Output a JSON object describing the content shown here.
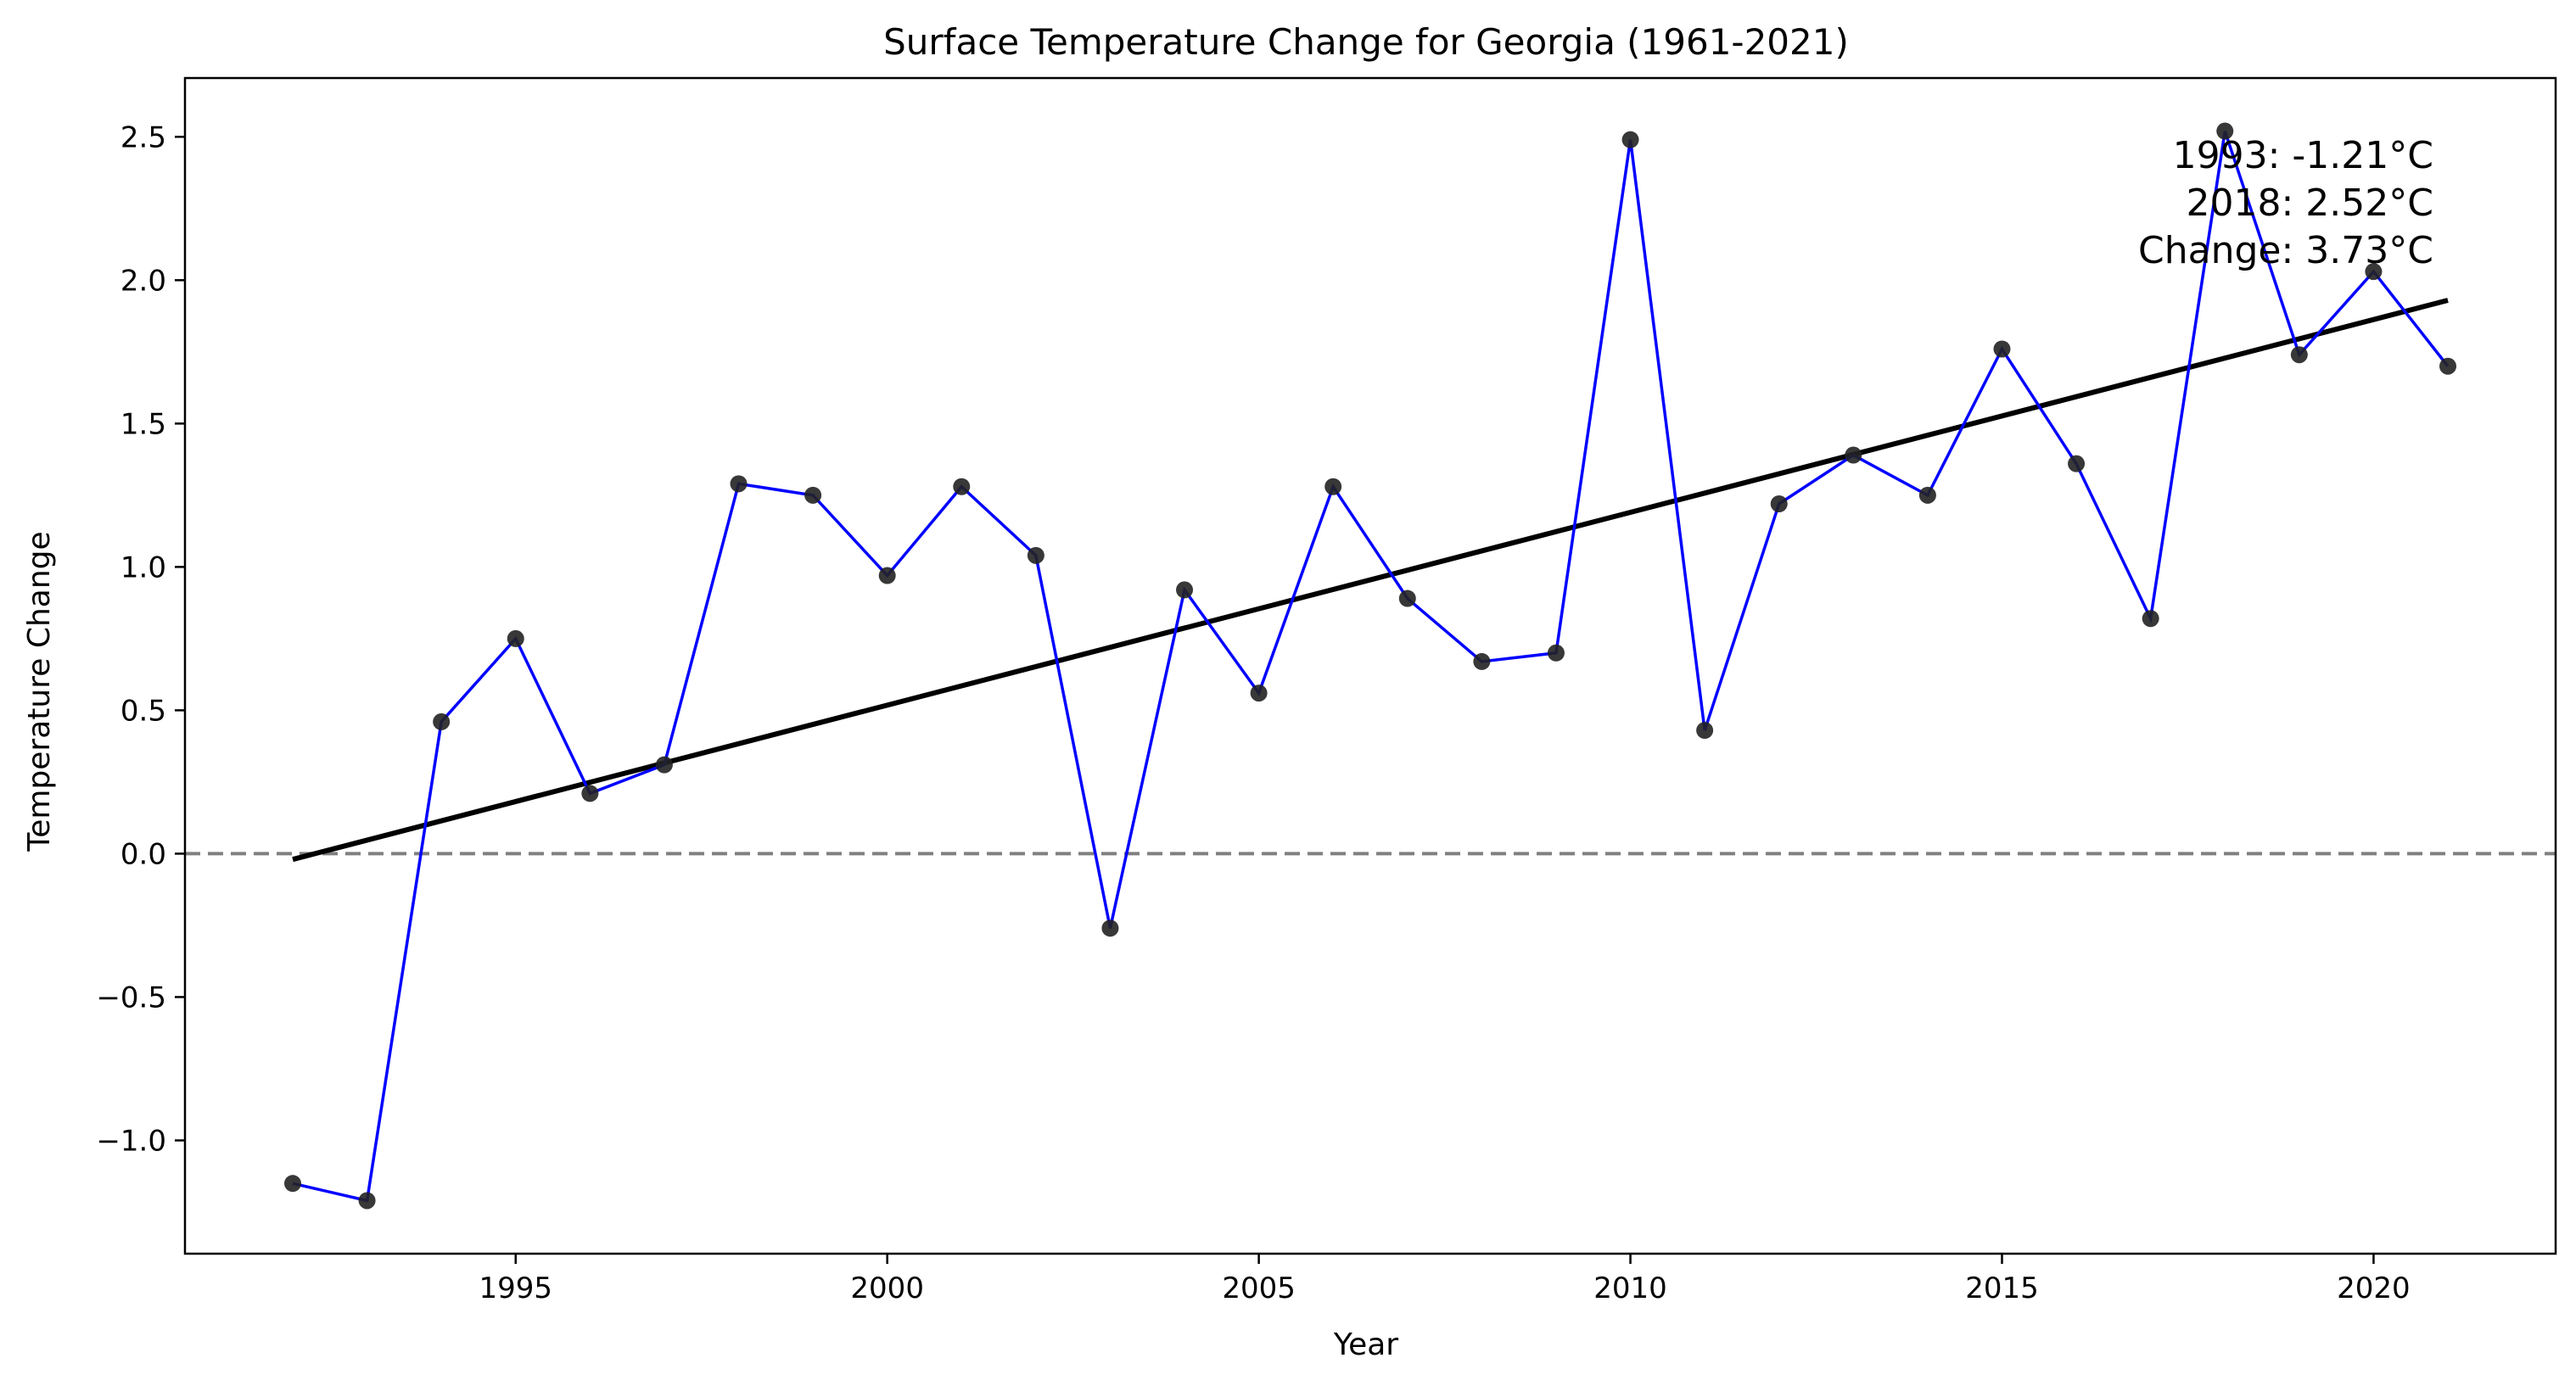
{
  "chart_data": {
    "type": "line",
    "title": "Surface Temperature Change for Georgia (1961-2021)",
    "xlabel": "Year",
    "ylabel": "Temperature Change",
    "xlim": [
      1990.55,
      2022.45
    ],
    "ylim": [
      -1.395,
      2.705
    ],
    "x_ticks": [
      1995,
      2000,
      2005,
      2010,
      2015,
      2020
    ],
    "y_ticks": [
      -1.0,
      -0.5,
      0.0,
      0.5,
      1.0,
      1.5,
      2.0,
      2.5
    ],
    "x_tick_labels": [
      "1995",
      "2000",
      "2005",
      "2010",
      "2015",
      "2020"
    ],
    "y_tick_labels": [
      "−1.0",
      "−0.5",
      "0.0",
      "0.5",
      "1.0",
      "1.5",
      "2.0",
      "2.5"
    ],
    "grid": false,
    "series": [
      {
        "x": [
          1992,
          1993,
          1994,
          1995,
          1996,
          1997,
          1998,
          1999,
          2000,
          2001,
          2002,
          2003,
          2004,
          2005,
          2006,
          2007,
          2008,
          2009,
          2010,
          2011,
          2012,
          2013,
          2014,
          2015,
          2016,
          2017,
          2018,
          2019,
          2020,
          2021
        ],
        "y": [
          -1.15,
          -1.21,
          0.46,
          0.75,
          0.21,
          0.31,
          1.29,
          1.25,
          0.97,
          1.28,
          1.04,
          -0.26,
          0.92,
          0.56,
          1.28,
          0.89,
          0.67,
          0.7,
          2.49,
          0.43,
          1.22,
          1.39,
          1.25,
          1.76,
          1.36,
          0.82,
          2.52,
          1.74,
          2.03,
          1.7
        ],
        "color": "#0000ff",
        "marker_color": "#222222"
      }
    ],
    "trend_line": {
      "x": [
        1992,
        2021
      ],
      "y": [
        -0.02,
        1.93
      ],
      "color": "#000000"
    },
    "reference_line": {
      "y": 0.0,
      "color": "#808080",
      "style": "dashed"
    },
    "annotation": {
      "lines": [
        "1993: -1.21°C",
        "2018: 2.52°C",
        "Change: 3.73°C"
      ],
      "color": "#ffa500",
      "placement": "top-right"
    }
  }
}
